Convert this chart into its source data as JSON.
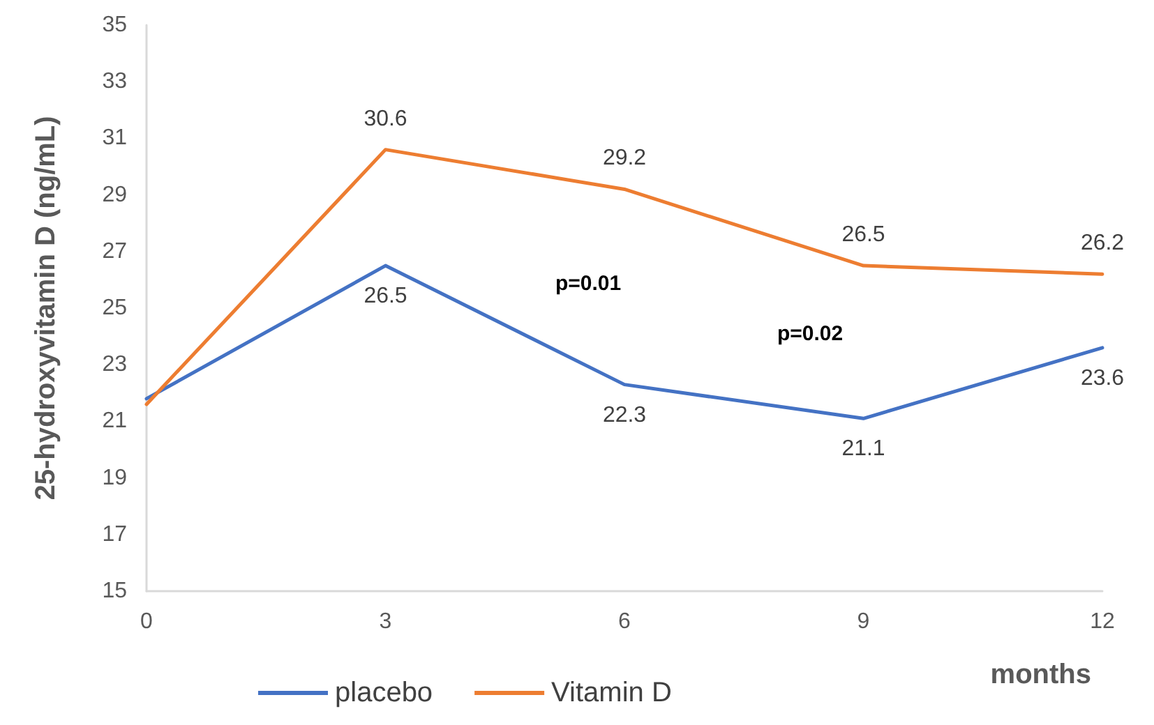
{
  "chart_data": {
    "type": "line",
    "ylabel": "25-hydroxyvitamin D (ng/mL)",
    "xlabel": "months",
    "x": [
      0,
      3,
      6,
      9,
      12
    ],
    "xlim": [
      0,
      12
    ],
    "xticks": [
      0,
      3,
      6,
      9,
      12
    ],
    "ylim": [
      15,
      35
    ],
    "yticks": [
      15,
      17,
      19,
      21,
      23,
      25,
      27,
      29,
      31,
      33,
      35
    ],
    "series": [
      {
        "name": "placebo",
        "color": "#4472c4",
        "values": [
          21.8,
          26.5,
          22.3,
          21.1,
          23.6
        ],
        "value_labels": [
          null,
          "26.5",
          "22.3",
          "21.1",
          "23.6"
        ]
      },
      {
        "name": "Vitamin D",
        "color": "#ed7d31",
        "values": [
          21.6,
          30.6,
          29.2,
          26.5,
          26.2
        ],
        "value_labels": [
          null,
          "30.6",
          "29.2",
          "26.5",
          "26.2"
        ]
      }
    ],
    "annotations": [
      "p=0.01",
      "p=0.02"
    ],
    "legend": "bottom",
    "grid": false,
    "marker": "none",
    "line_style": "solid"
  }
}
